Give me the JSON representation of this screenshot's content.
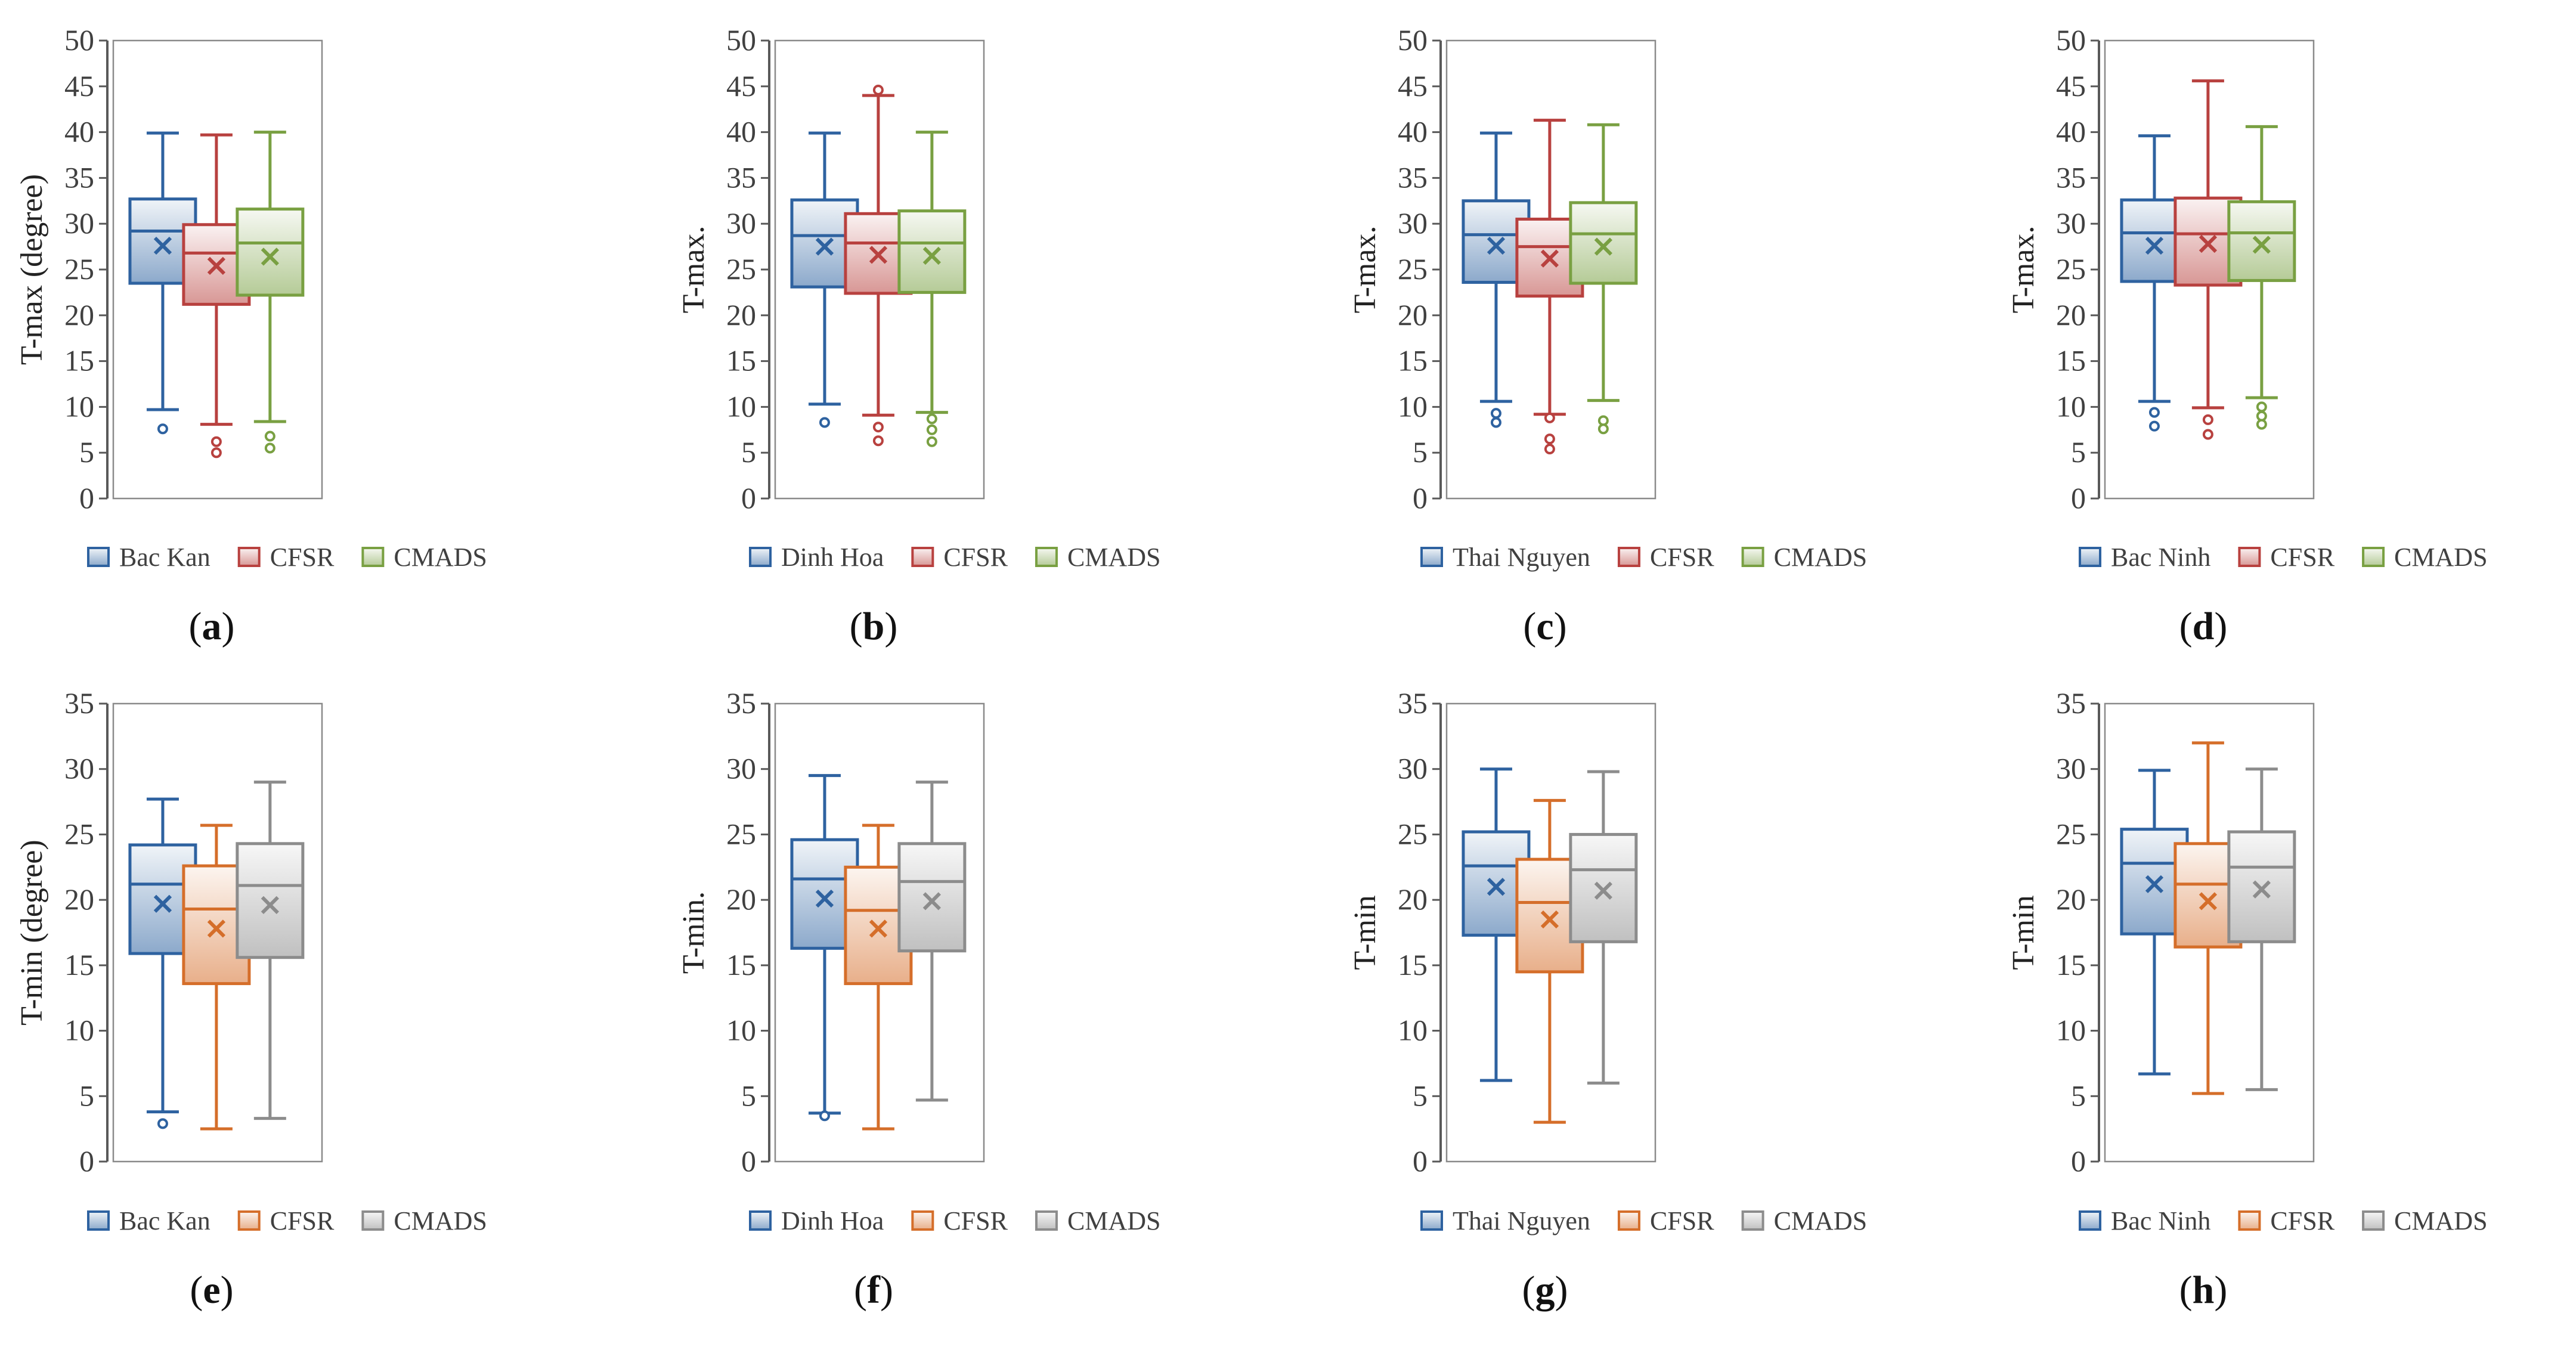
{
  "figure": {
    "colors": {
      "blue": "#2E62A0",
      "red": "#B8413F",
      "green": "#79A042",
      "orange": "#D56E2A",
      "gray": "#8C8C8C",
      "axis": "#595959",
      "text": "#333333"
    }
  },
  "chart_data": [
    {
      "panel_label": "(a)",
      "type": "box",
      "ylabel": "T-max (degree)",
      "ylim": [
        0,
        50
      ],
      "yticks": [
        0,
        5,
        10,
        15,
        20,
        25,
        30,
        35,
        40,
        45,
        50
      ],
      "series": [
        {
          "name": "Bac Kan",
          "color": "blue",
          "min": 9.7,
          "q1": 23.5,
          "median": 29.2,
          "q3": 32.7,
          "max": 39.9,
          "mean": 27.6,
          "outliers": [
            7.6
          ]
        },
        {
          "name": "CFSR",
          "color": "red",
          "min": 8.1,
          "q1": 21.2,
          "median": 26.8,
          "q3": 29.9,
          "max": 39.7,
          "mean": 25.4,
          "outliers": [
            6.2,
            5.0
          ]
        },
        {
          "name": "CMADS",
          "color": "green",
          "min": 8.4,
          "q1": 22.2,
          "median": 27.9,
          "q3": 31.6,
          "max": 40.0,
          "mean": 26.4,
          "outliers": [
            6.8,
            5.5
          ]
        }
      ]
    },
    {
      "panel_label": "(b)",
      "type": "box",
      "ylabel": "T-max.",
      "ylim": [
        0,
        50
      ],
      "yticks": [
        0,
        5,
        10,
        15,
        20,
        25,
        30,
        35,
        40,
        45,
        50
      ],
      "series": [
        {
          "name": "Dinh Hoa",
          "color": "blue",
          "min": 10.3,
          "q1": 23.1,
          "median": 28.7,
          "q3": 32.6,
          "max": 39.9,
          "mean": 27.5,
          "outliers": [
            8.3
          ]
        },
        {
          "name": "CFSR",
          "color": "red",
          "min": 9.1,
          "q1": 22.4,
          "median": 27.9,
          "q3": 31.1,
          "max": 44.0,
          "mean": 26.6,
          "outliers": [
            44.6,
            7.8,
            6.3
          ]
        },
        {
          "name": "CMADS",
          "color": "green",
          "min": 9.4,
          "q1": 22.5,
          "median": 27.9,
          "q3": 31.4,
          "max": 40.0,
          "mean": 26.5,
          "outliers": [
            8.7,
            7.5,
            6.2
          ]
        }
      ]
    },
    {
      "panel_label": "(c)",
      "type": "box",
      "ylabel": "T-max.",
      "ylim": [
        0,
        50
      ],
      "yticks": [
        0,
        5,
        10,
        15,
        20,
        25,
        30,
        35,
        40,
        45,
        50
      ],
      "series": [
        {
          "name": "Thai Nguyen",
          "color": "blue",
          "min": 10.6,
          "q1": 23.6,
          "median": 28.8,
          "q3": 32.5,
          "max": 39.9,
          "mean": 27.6,
          "outliers": [
            9.3,
            8.3
          ]
        },
        {
          "name": "CFSR",
          "color": "red",
          "min": 9.2,
          "q1": 22.1,
          "median": 27.5,
          "q3": 30.5,
          "max": 41.3,
          "mean": 26.2,
          "outliers": [
            8.8,
            6.5,
            5.4
          ]
        },
        {
          "name": "CMADS",
          "color": "green",
          "min": 10.7,
          "q1": 23.5,
          "median": 28.9,
          "q3": 32.3,
          "max": 40.8,
          "mean": 27.5,
          "outliers": [
            8.5,
            7.6
          ]
        }
      ]
    },
    {
      "panel_label": "(d)",
      "type": "box",
      "ylabel": "T-max.",
      "ylim": [
        0,
        50
      ],
      "yticks": [
        0,
        5,
        10,
        15,
        20,
        25,
        30,
        35,
        40,
        45,
        50
      ],
      "series": [
        {
          "name": "Bac Ninh",
          "color": "blue",
          "min": 10.6,
          "q1": 23.7,
          "median": 29.0,
          "q3": 32.6,
          "max": 39.6,
          "mean": 27.6,
          "outliers": [
            9.4,
            7.9
          ]
        },
        {
          "name": "CFSR",
          "color": "red",
          "min": 9.9,
          "q1": 23.3,
          "median": 28.9,
          "q3": 32.8,
          "max": 45.6,
          "mean": 27.8,
          "outliers": [
            8.6,
            7.0
          ]
        },
        {
          "name": "CMADS",
          "color": "green",
          "min": 11.0,
          "q1": 23.8,
          "median": 29.0,
          "q3": 32.4,
          "max": 40.6,
          "mean": 27.7,
          "outliers": [
            10.0,
            9.0,
            8.1
          ]
        }
      ]
    },
    {
      "panel_label": "(e)",
      "type": "box",
      "ylabel": "T-min (degree)",
      "ylim": [
        0,
        35
      ],
      "yticks": [
        0,
        5,
        10,
        15,
        20,
        25,
        30,
        35
      ],
      "series": [
        {
          "name": "Bac Kan",
          "color": "blue",
          "min": 3.8,
          "q1": 15.9,
          "median": 21.2,
          "q3": 24.2,
          "max": 27.7,
          "mean": 19.7,
          "outliers": [
            2.9
          ]
        },
        {
          "name": "CFSR",
          "color": "orange",
          "min": 2.5,
          "q1": 13.6,
          "median": 19.3,
          "q3": 22.6,
          "max": 25.7,
          "mean": 17.8,
          "outliers": []
        },
        {
          "name": "CMADS",
          "color": "gray",
          "min": 3.3,
          "q1": 15.6,
          "median": 21.1,
          "q3": 24.3,
          "max": 29.0,
          "mean": 19.6,
          "outliers": []
        }
      ]
    },
    {
      "panel_label": "(f)",
      "type": "box",
      "ylabel": "T-min.",
      "ylim": [
        0,
        35
      ],
      "yticks": [
        0,
        5,
        10,
        15,
        20,
        25,
        30,
        35
      ],
      "series": [
        {
          "name": "Dinh Hoa",
          "color": "blue",
          "min": 3.7,
          "q1": 16.3,
          "median": 21.6,
          "q3": 24.6,
          "max": 29.5,
          "mean": 20.1,
          "outliers": [
            3.5
          ]
        },
        {
          "name": "CFSR",
          "color": "orange",
          "min": 2.5,
          "q1": 13.6,
          "median": 19.2,
          "q3": 22.5,
          "max": 25.7,
          "mean": 17.8,
          "outliers": []
        },
        {
          "name": "CMADS",
          "color": "gray",
          "min": 4.7,
          "q1": 16.1,
          "median": 21.4,
          "q3": 24.3,
          "max": 29.0,
          "mean": 19.9,
          "outliers": []
        }
      ]
    },
    {
      "panel_label": "(g)",
      "type": "box",
      "ylabel": "T-min",
      "ylim": [
        0,
        35
      ],
      "yticks": [
        0,
        5,
        10,
        15,
        20,
        25,
        30,
        35
      ],
      "series": [
        {
          "name": "Thai Nguyen",
          "color": "blue",
          "min": 6.2,
          "q1": 17.3,
          "median": 22.6,
          "q3": 25.2,
          "max": 30.0,
          "mean": 21.0,
          "outliers": []
        },
        {
          "name": "CFSR",
          "color": "orange",
          "min": 3.0,
          "q1": 14.5,
          "median": 19.8,
          "q3": 23.1,
          "max": 27.6,
          "mean": 18.5,
          "outliers": []
        },
        {
          "name": "CMADS",
          "color": "gray",
          "min": 6.0,
          "q1": 16.8,
          "median": 22.3,
          "q3": 25.0,
          "max": 29.8,
          "mean": 20.7,
          "outliers": []
        }
      ]
    },
    {
      "panel_label": "(h)",
      "type": "box",
      "ylabel": "T-min",
      "ylim": [
        0,
        35
      ],
      "yticks": [
        0,
        5,
        10,
        15,
        20,
        25,
        30,
        35
      ],
      "series": [
        {
          "name": "Bac Ninh",
          "color": "blue",
          "min": 6.7,
          "q1": 17.4,
          "median": 22.8,
          "q3": 25.4,
          "max": 29.9,
          "mean": 21.2,
          "outliers": []
        },
        {
          "name": "CFSR",
          "color": "orange",
          "min": 5.2,
          "q1": 16.4,
          "median": 21.2,
          "q3": 24.3,
          "max": 32.0,
          "mean": 19.9,
          "outliers": []
        },
        {
          "name": "CMADS",
          "color": "gray",
          "min": 5.5,
          "q1": 16.8,
          "median": 22.5,
          "q3": 25.2,
          "max": 30.0,
          "mean": 20.8,
          "outliers": []
        }
      ]
    }
  ]
}
